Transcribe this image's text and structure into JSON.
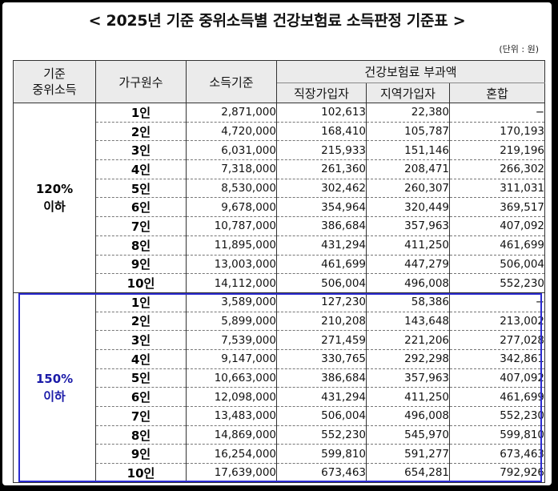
{
  "title": "< 2025년 기준 중위소득별 건강보험료 소득판정 기준표 >",
  "unit": "(단위 : 원)",
  "headers": {
    "median_income": "기준\n중위소득",
    "household_size": "가구원수",
    "income_standard": "소득기준",
    "premium_group": "건강보험료 부과액",
    "employee": "직장가입자",
    "regional": "지역가입자",
    "mixed": "혼합"
  },
  "bands": [
    {
      "label": "120%\n이하",
      "rows": [
        {
          "size": "1인",
          "income": "2,871,000",
          "employee": "102,613",
          "regional": "22,380",
          "mixed": "−"
        },
        {
          "size": "2인",
          "income": "4,720,000",
          "employee": "168,410",
          "regional": "105,787",
          "mixed": "170,193"
        },
        {
          "size": "3인",
          "income": "6,031,000",
          "employee": "215,933",
          "regional": "151,146",
          "mixed": "219,196"
        },
        {
          "size": "4인",
          "income": "7,318,000",
          "employee": "261,360",
          "regional": "208,471",
          "mixed": "266,302"
        },
        {
          "size": "5인",
          "income": "8,530,000",
          "employee": "302,462",
          "regional": "260,307",
          "mixed": "311,031"
        },
        {
          "size": "6인",
          "income": "9,678,000",
          "employee": "354,964",
          "regional": "320,449",
          "mixed": "369,517"
        },
        {
          "size": "7인",
          "income": "10,787,000",
          "employee": "386,684",
          "regional": "357,963",
          "mixed": "407,092"
        },
        {
          "size": "8인",
          "income": "11,895,000",
          "employee": "431,294",
          "regional": "411,250",
          "mixed": "461,699"
        },
        {
          "size": "9인",
          "income": "13,003,000",
          "employee": "461,699",
          "regional": "447,279",
          "mixed": "506,004"
        },
        {
          "size": "10인",
          "income": "14,112,000",
          "employee": "506,004",
          "regional": "496,008",
          "mixed": "552,230"
        }
      ]
    },
    {
      "label": "150%\n이하",
      "rows": [
        {
          "size": "1인",
          "income": "3,589,000",
          "employee": "127,230",
          "regional": "58,386",
          "mixed": "−"
        },
        {
          "size": "2인",
          "income": "5,899,000",
          "employee": "210,208",
          "regional": "143,648",
          "mixed": "213,002"
        },
        {
          "size": "3인",
          "income": "7,539,000",
          "employee": "271,459",
          "regional": "221,206",
          "mixed": "277,028"
        },
        {
          "size": "4인",
          "income": "9,147,000",
          "employee": "330,765",
          "regional": "292,298",
          "mixed": "342,861"
        },
        {
          "size": "5인",
          "income": "10,663,000",
          "employee": "386,684",
          "regional": "357,963",
          "mixed": "407,092"
        },
        {
          "size": "6인",
          "income": "12,098,000",
          "employee": "431,294",
          "regional": "411,250",
          "mixed": "461,699"
        },
        {
          "size": "7인",
          "income": "13,483,000",
          "employee": "506,004",
          "regional": "496,008",
          "mixed": "552,230"
        },
        {
          "size": "8인",
          "income": "14,869,000",
          "employee": "552,230",
          "regional": "545,970",
          "mixed": "599,810"
        },
        {
          "size": "9인",
          "income": "16,254,000",
          "employee": "599,810",
          "regional": "591,277",
          "mixed": "673,463"
        },
        {
          "size": "10인",
          "income": "17,639,000",
          "employee": "673,463",
          "regional": "654,281",
          "mixed": "792,926"
        }
      ]
    }
  ],
  "colors": {
    "highlight_border": "#2b2bd0",
    "band2_text": "#1a1aa8",
    "header_bg": "#ebebeb"
  }
}
